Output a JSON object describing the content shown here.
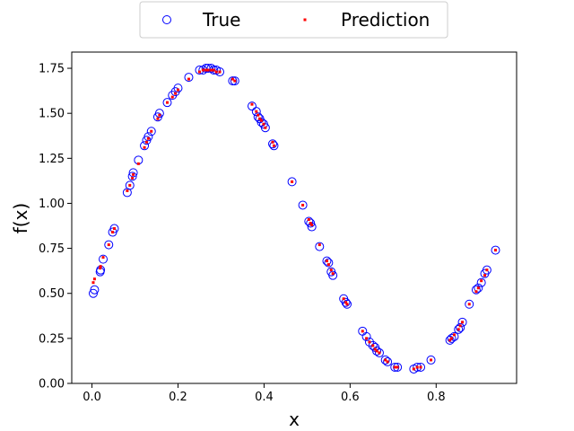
{
  "chart_data": {
    "type": "scatter",
    "xlabel": "x",
    "ylabel": "f(x)",
    "xlim": [
      -0.047,
      0.987
    ],
    "ylim": [
      0.0,
      1.84
    ],
    "xticks": [
      0.0,
      0.2,
      0.4,
      0.6,
      0.8
    ],
    "xtick_labels": [
      "0.0",
      "0.2",
      "0.4",
      "0.6",
      "0.8"
    ],
    "yticks": [
      0.0,
      0.25,
      0.5,
      0.75,
      1.0,
      1.25,
      1.5,
      1.75
    ],
    "ytick_labels": [
      "0.00",
      "0.25",
      "0.50",
      "0.75",
      "1.00",
      "1.25",
      "1.50",
      "1.75"
    ],
    "legend_position": "top-center-outside",
    "series": [
      {
        "name": "True",
        "marker": "hollow-circle",
        "color": "#0000ff",
        "x": [
          0.003,
          0.006,
          0.019,
          0.02,
          0.026,
          0.039,
          0.048,
          0.052,
          0.082,
          0.088,
          0.094,
          0.096,
          0.108,
          0.122,
          0.127,
          0.131,
          0.138,
          0.153,
          0.157,
          0.175,
          0.187,
          0.194,
          0.2,
          0.225,
          0.25,
          0.258,
          0.265,
          0.27,
          0.277,
          0.283,
          0.289,
          0.297,
          0.327,
          0.332,
          0.372,
          0.382,
          0.386,
          0.39,
          0.394,
          0.399,
          0.403,
          0.42,
          0.423,
          0.465,
          0.49,
          0.504,
          0.508,
          0.511,
          0.529,
          0.546,
          0.55,
          0.556,
          0.56,
          0.585,
          0.59,
          0.593,
          0.629,
          0.638,
          0.645,
          0.653,
          0.658,
          0.662,
          0.668,
          0.682,
          0.687,
          0.704,
          0.71,
          0.748,
          0.756,
          0.764,
          0.788,
          0.832,
          0.836,
          0.842,
          0.852,
          0.856,
          0.861,
          0.877,
          0.893,
          0.898,
          0.905,
          0.913,
          0.918,
          0.938
        ],
        "y": [
          0.5,
          0.52,
          0.62,
          0.63,
          0.69,
          0.77,
          0.84,
          0.86,
          1.06,
          1.1,
          1.15,
          1.17,
          1.24,
          1.32,
          1.35,
          1.37,
          1.4,
          1.48,
          1.5,
          1.56,
          1.6,
          1.62,
          1.64,
          1.7,
          1.74,
          1.74,
          1.75,
          1.75,
          1.75,
          1.74,
          1.74,
          1.73,
          1.68,
          1.68,
          1.54,
          1.51,
          1.48,
          1.47,
          1.45,
          1.44,
          1.42,
          1.33,
          1.32,
          1.12,
          0.99,
          0.9,
          0.89,
          0.87,
          0.76,
          0.68,
          0.67,
          0.62,
          0.6,
          0.47,
          0.45,
          0.44,
          0.29,
          0.26,
          0.23,
          0.21,
          0.2,
          0.18,
          0.17,
          0.13,
          0.12,
          0.09,
          0.09,
          0.08,
          0.09,
          0.09,
          0.13,
          0.24,
          0.25,
          0.26,
          0.3,
          0.31,
          0.34,
          0.44,
          0.52,
          0.53,
          0.56,
          0.61,
          0.63,
          0.74
        ]
      },
      {
        "name": "Prediction",
        "marker": "small-square",
        "color": "#ff0000",
        "x": [
          0.003,
          0.006,
          0.019,
          0.02,
          0.026,
          0.039,
          0.048,
          0.052,
          0.082,
          0.088,
          0.094,
          0.096,
          0.108,
          0.122,
          0.127,
          0.131,
          0.138,
          0.153,
          0.157,
          0.175,
          0.187,
          0.194,
          0.2,
          0.225,
          0.25,
          0.258,
          0.265,
          0.27,
          0.277,
          0.283,
          0.289,
          0.297,
          0.327,
          0.332,
          0.372,
          0.382,
          0.386,
          0.39,
          0.394,
          0.399,
          0.403,
          0.42,
          0.423,
          0.465,
          0.49,
          0.504,
          0.508,
          0.511,
          0.529,
          0.546,
          0.55,
          0.556,
          0.56,
          0.585,
          0.59,
          0.593,
          0.629,
          0.638,
          0.645,
          0.653,
          0.658,
          0.662,
          0.668,
          0.682,
          0.687,
          0.704,
          0.71,
          0.748,
          0.756,
          0.764,
          0.788,
          0.832,
          0.836,
          0.842,
          0.852,
          0.856,
          0.861,
          0.877,
          0.893,
          0.898,
          0.905,
          0.913,
          0.918,
          0.938
        ],
        "y": [
          0.56,
          0.58,
          0.64,
          0.65,
          0.7,
          0.77,
          0.84,
          0.86,
          1.07,
          1.1,
          1.14,
          1.16,
          1.22,
          1.31,
          1.34,
          1.36,
          1.4,
          1.47,
          1.49,
          1.56,
          1.59,
          1.61,
          1.63,
          1.69,
          1.73,
          1.74,
          1.74,
          1.74,
          1.74,
          1.74,
          1.73,
          1.73,
          1.69,
          1.68,
          1.55,
          1.51,
          1.49,
          1.47,
          1.46,
          1.44,
          1.42,
          1.34,
          1.32,
          1.12,
          0.99,
          0.91,
          0.89,
          0.88,
          0.77,
          0.68,
          0.66,
          0.63,
          0.61,
          0.47,
          0.45,
          0.44,
          0.29,
          0.25,
          0.23,
          0.21,
          0.19,
          0.18,
          0.17,
          0.13,
          0.12,
          0.09,
          0.09,
          0.08,
          0.09,
          0.09,
          0.13,
          0.24,
          0.25,
          0.27,
          0.3,
          0.32,
          0.34,
          0.44,
          0.51,
          0.53,
          0.57,
          0.6,
          0.63,
          0.74
        ]
      }
    ]
  }
}
